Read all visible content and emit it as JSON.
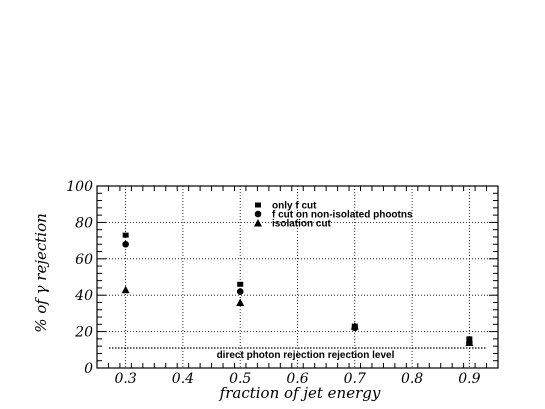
{
  "chart_data": {
    "type": "scatter",
    "title": "",
    "xlabel": "fraction of jet energy",
    "ylabel": "% of γ rejection",
    "xlim": [
      0.25,
      0.95
    ],
    "ylim": [
      0,
      100
    ],
    "xticks": [
      0.3,
      0.4,
      0.5,
      0.6,
      0.7,
      0.8,
      0.9
    ],
    "xtick_labels": [
      "0.3",
      "0.4",
      "0.5",
      "0.6",
      "0.7",
      "0.8",
      "0.9"
    ],
    "yticks": [
      0,
      20,
      40,
      60,
      80,
      100
    ],
    "ytick_labels": [
      "0",
      "20",
      "40",
      "60",
      "80",
      "100"
    ],
    "grid": true,
    "legend_position": "top-right",
    "series": [
      {
        "name": "only  f cut",
        "marker": "square",
        "x": [
          0.3,
          0.5,
          0.7,
          0.9
        ],
        "y": [
          73,
          46,
          23,
          16
        ]
      },
      {
        "name": "f cut  on non-isolated phootns",
        "marker": "circle",
        "x": [
          0.3,
          0.5,
          0.7,
          0.9
        ],
        "y": [
          68,
          42,
          22,
          14
        ]
      },
      {
        "name": "isolation cut",
        "marker": "triangle",
        "x": [
          0.3,
          0.5,
          0.7,
          0.9
        ],
        "y": [
          43,
          36,
          23,
          14
        ]
      }
    ],
    "reference_line": {
      "y": 11,
      "label": "direct photon rejection rejection level"
    }
  }
}
